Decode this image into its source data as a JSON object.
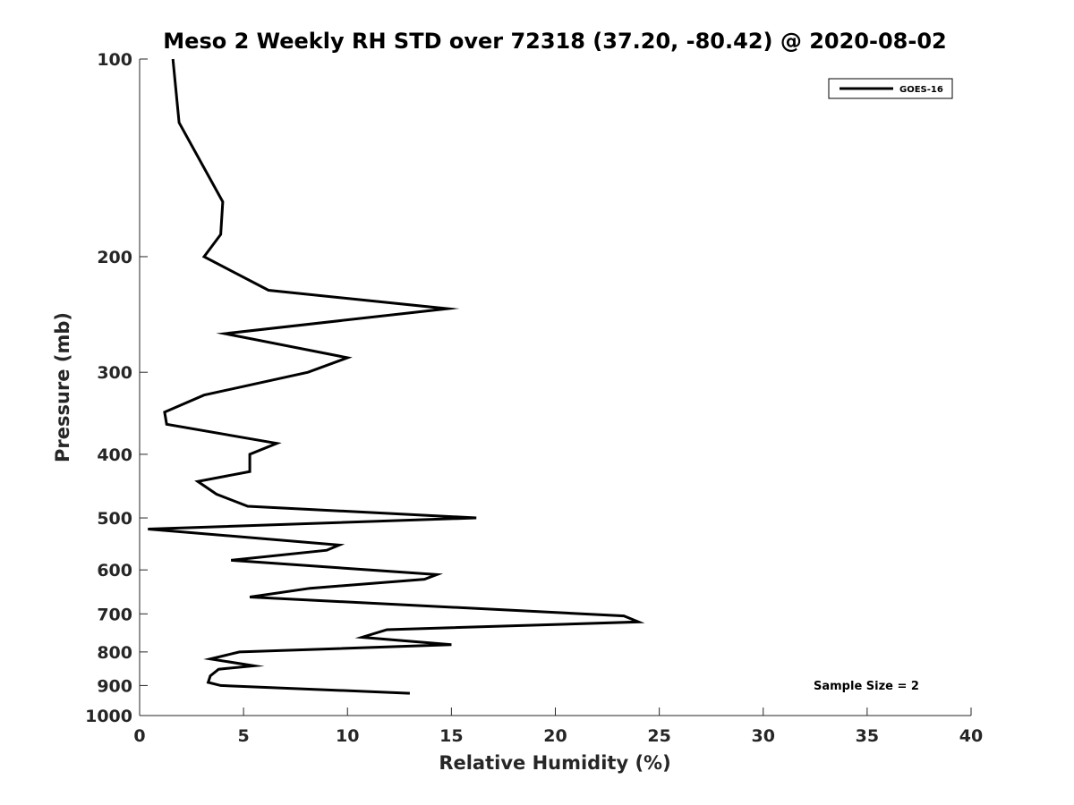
{
  "chart_data": {
    "type": "line",
    "title": "Meso 2 Weekly RH STD over 72318 (37.20, -80.42) @ 2020-08-02",
    "xlabel": "Relative Humidity (%)",
    "ylabel": "Pressure (mb)",
    "xlim": [
      0,
      40
    ],
    "ylim": [
      100,
      1000
    ],
    "y_scale": "log",
    "y_reversed": true,
    "x_ticks": [
      "0",
      "5",
      "10",
      "15",
      "20",
      "25",
      "30",
      "35",
      "40"
    ],
    "y_ticks": [
      "100",
      "200",
      "300",
      "400",
      "500",
      "600",
      "700",
      "800",
      "900",
      "1000"
    ],
    "legend": {
      "placement": "top-right",
      "entries": [
        "GOES-16"
      ]
    },
    "annotations": [
      "Sample Size = 2"
    ],
    "series": [
      {
        "name": "GOES-16",
        "color": "#000000",
        "x": [
          13.0,
          3.9,
          3.3,
          3.4,
          3.8,
          5.5,
          3.4,
          4.8,
          15.0,
          10.7,
          11.9,
          24.0,
          23.3,
          5.3,
          8.2,
          13.7,
          14.3,
          4.4,
          9.0,
          9.6,
          0.4,
          16.2,
          5.2,
          3.7,
          2.8,
          5.3,
          5.3,
          6.6,
          1.3,
          1.2,
          3.1,
          8.1,
          10.0,
          4.1,
          14.8,
          6.2,
          3.1,
          3.9,
          4.0,
          1.9,
          1.6
        ],
        "y": [
          925,
          900,
          890,
          870,
          850,
          840,
          820,
          800,
          780,
          760,
          740,
          720,
          705,
          660,
          640,
          620,
          610,
          580,
          560,
          550,
          520,
          500,
          480,
          460,
          440,
          425,
          400,
          385,
          360,
          345,
          325,
          300,
          285,
          262,
          240,
          225,
          200,
          185,
          165,
          125,
          100
        ]
      }
    ]
  }
}
